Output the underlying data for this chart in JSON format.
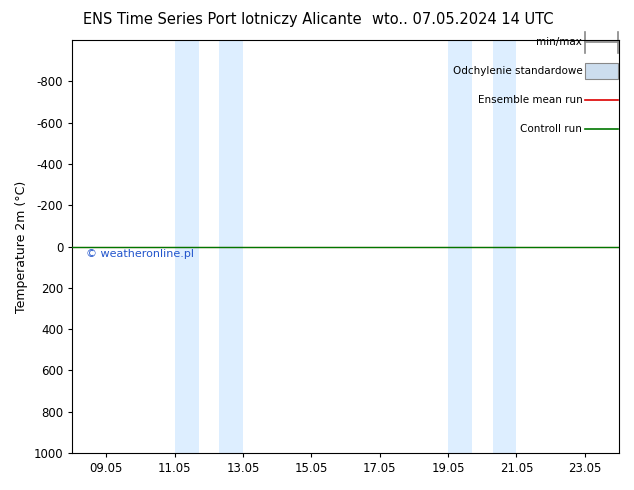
{
  "title_left": "ENS Time Series Port lotniczy Alicante",
  "title_right": "wto.. 07.05.2024 14 UTC",
  "ylabel": "Temperature 2m (°C)",
  "watermark": "© weatheronline.pl",
  "ylim_top": -1000,
  "ylim_bottom": 1000,
  "yticks": [
    -800,
    -600,
    -400,
    -200,
    0,
    200,
    400,
    600,
    800,
    1000
  ],
  "xtick_labels": [
    "09.05",
    "11.05",
    "13.05",
    "15.05",
    "17.05",
    "19.05",
    "21.05",
    "23.05"
  ],
  "xmin": 0.0,
  "xmax": 16.0,
  "xtick_positions": [
    1.0,
    3.0,
    5.0,
    7.0,
    9.0,
    11.0,
    13.0,
    15.0
  ],
  "shaded_bands": [
    {
      "xmin": 3.0,
      "xmax": 3.7,
      "color": "#ddeeff"
    },
    {
      "xmin": 4.3,
      "xmax": 5.0,
      "color": "#ddeeff"
    },
    {
      "xmin": 11.0,
      "xmax": 11.7,
      "color": "#ddeeff"
    },
    {
      "xmin": 12.3,
      "xmax": 13.0,
      "color": "#ddeeff"
    }
  ],
  "ensemble_line_color": "#dd0000",
  "control_line_color": "#007700",
  "legend_labels": [
    "min/max",
    "Odchylenie standardowe",
    "Ensemble mean run",
    "Controll run"
  ],
  "legend_colors_line": [
    "#888888",
    "#aaaaaa",
    "#dd0000",
    "#007700"
  ],
  "background_color": "#ffffff",
  "plot_bg_color": "#ffffff",
  "border_color": "#000000",
  "title_fontsize": 10.5,
  "axis_label_fontsize": 9,
  "tick_fontsize": 8.5,
  "legend_fontsize": 7.5,
  "watermark_color": "#2255cc"
}
